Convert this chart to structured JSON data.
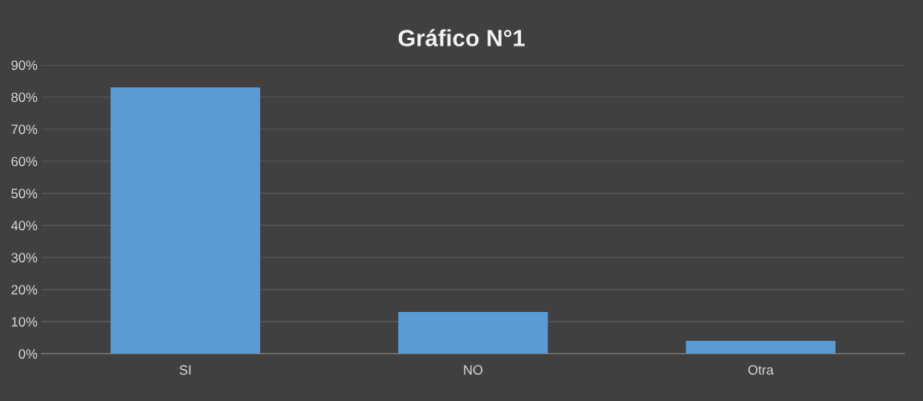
{
  "chart_data": {
    "type": "bar",
    "title": "Gráfico N°1",
    "categories": [
      "SI",
      "NO",
      "Otra"
    ],
    "values": [
      83,
      13,
      4
    ],
    "color": "#5b9bd5",
    "ylim": [
      0,
      90
    ],
    "yticks": [
      {
        "value": 0,
        "label": "0%"
      },
      {
        "value": 10,
        "label": "10%"
      },
      {
        "value": 20,
        "label": "20%"
      },
      {
        "value": 30,
        "label": "30%"
      },
      {
        "value": 40,
        "label": "40%"
      },
      {
        "value": 50,
        "label": "50%"
      },
      {
        "value": 60,
        "label": "60%"
      },
      {
        "value": 70,
        "label": "70%"
      },
      {
        "value": 80,
        "label": "80%"
      },
      {
        "value": 90,
        "label": "90%"
      }
    ],
    "grid": "y",
    "legend": false
  }
}
